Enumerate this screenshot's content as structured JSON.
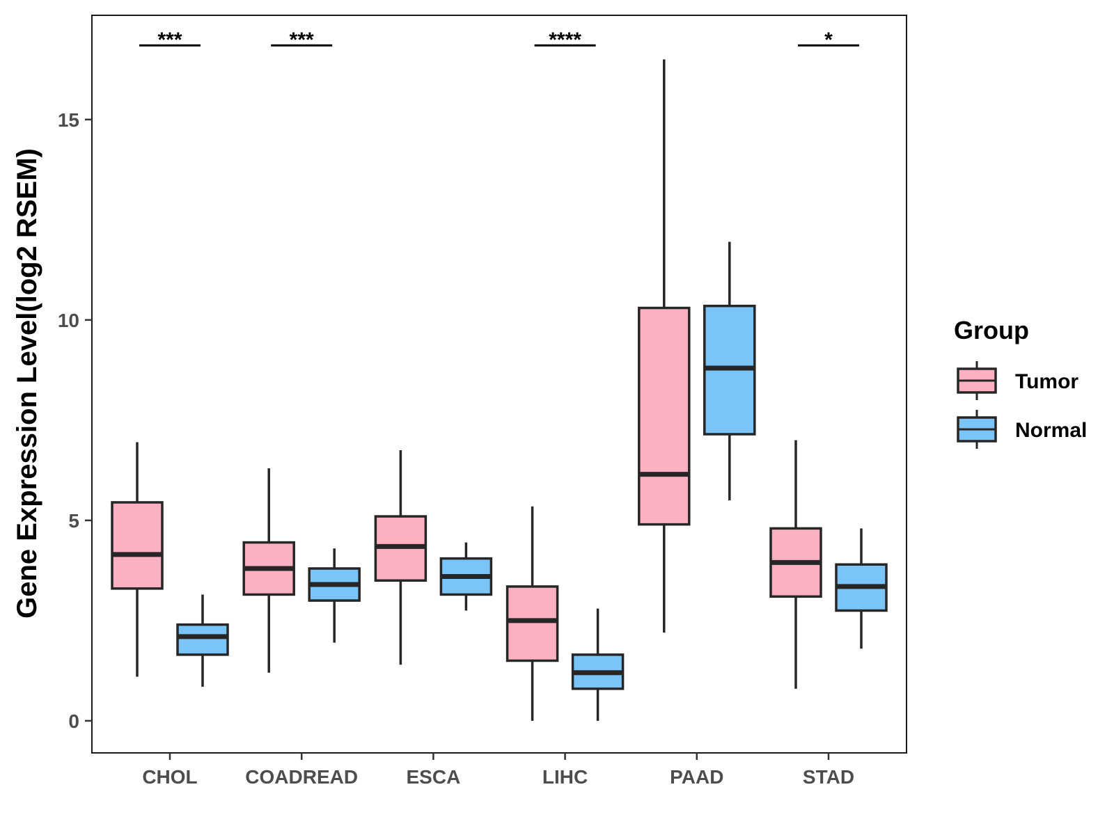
{
  "chart_data": {
    "type": "box",
    "title": "",
    "xlabel": "",
    "ylabel": "Gene Expression Level(log2 RSEM)",
    "ylim": [
      -0.8,
      17.6
    ],
    "yticks": [
      0,
      5,
      10,
      15
    ],
    "categories": [
      "CHOL",
      "COADREAD",
      "ESCA",
      "LIHC",
      "PAAD",
      "STAD"
    ],
    "legend": {
      "title": "Group",
      "position": "right",
      "entries": [
        {
          "name": "Tumor",
          "color": "#FBB1C2"
        },
        {
          "name": "Normal",
          "color": "#7AC4F8"
        }
      ]
    },
    "series": [
      {
        "name": "Tumor",
        "color": "#FBB1C2",
        "boxes": [
          {
            "min": 1.1,
            "q1": 3.3,
            "median": 4.15,
            "q3": 5.45,
            "max": 6.95
          },
          {
            "min": 1.2,
            "q1": 3.15,
            "median": 3.8,
            "q3": 4.45,
            "max": 6.3
          },
          {
            "min": 1.4,
            "q1": 3.5,
            "median": 4.35,
            "q3": 5.1,
            "max": 6.75
          },
          {
            "min": 0.0,
            "q1": 1.5,
            "median": 2.5,
            "q3": 3.35,
            "max": 5.35
          },
          {
            "min": 2.2,
            "q1": 4.9,
            "median": 6.15,
            "q3": 10.3,
            "max": 16.5
          },
          {
            "min": 0.8,
            "q1": 3.1,
            "median": 3.95,
            "q3": 4.8,
            "max": 7.0
          }
        ]
      },
      {
        "name": "Normal",
        "color": "#7AC4F8",
        "boxes": [
          {
            "min": 0.85,
            "q1": 1.65,
            "median": 2.1,
            "q3": 2.4,
            "max": 3.15
          },
          {
            "min": 1.95,
            "q1": 3.0,
            "median": 3.4,
            "q3": 3.8,
            "max": 4.3
          },
          {
            "min": 2.75,
            "q1": 3.15,
            "median": 3.6,
            "q3": 4.05,
            "max": 4.45
          },
          {
            "min": 0.0,
            "q1": 0.8,
            "median": 1.2,
            "q3": 1.65,
            "max": 2.8
          },
          {
            "min": 5.5,
            "q1": 7.15,
            "median": 8.8,
            "q3": 10.35,
            "max": 11.95
          },
          {
            "min": 1.8,
            "q1": 2.75,
            "median": 3.35,
            "q3": 3.9,
            "max": 4.8
          }
        ]
      }
    ],
    "significance": [
      {
        "category": "CHOL",
        "label": "***",
        "y": 16.85
      },
      {
        "category": "COADREAD",
        "label": "***",
        "y": 16.85
      },
      {
        "category": "LIHC",
        "label": "****",
        "y": 16.85
      },
      {
        "category": "STAD",
        "label": "*",
        "y": 16.85
      }
    ]
  }
}
